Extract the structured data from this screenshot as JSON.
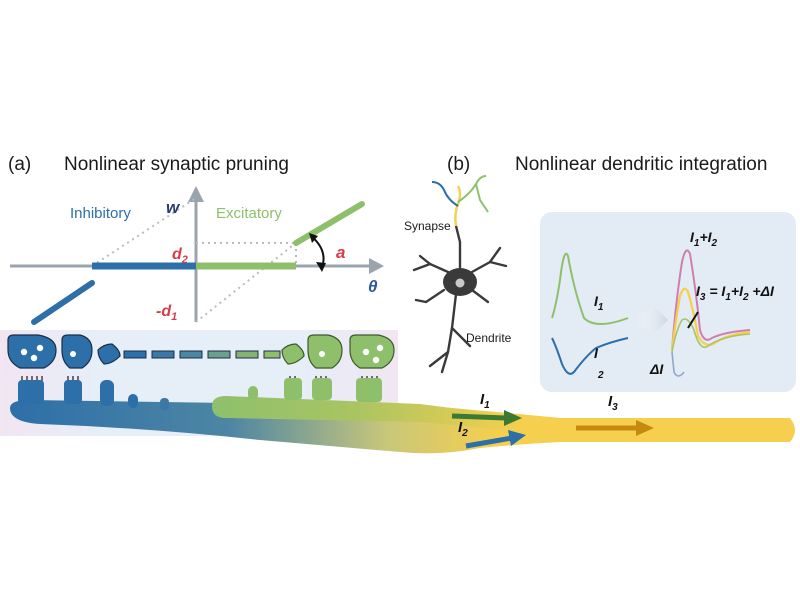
{
  "panel_a": {
    "letter": "(a)",
    "title": "Nonlinear synaptic pruning",
    "axis_w": "w",
    "axis_theta": "θ",
    "inhibitory_label": "Inhibitory",
    "excitatory_label": "Excitatory",
    "d2_base": "d",
    "d2_sub": "2",
    "d1_base": "-d",
    "d1_sub": "1",
    "a_label": "a",
    "current1_base": "I",
    "current1_sub": "1",
    "current2_base": "I",
    "current2_sub": "2",
    "current3_base": "I",
    "current3_sub": "3"
  },
  "panel_b": {
    "letter": "(b)",
    "title": "Nonlinear dendritic integration",
    "synapse_label": "Synapse",
    "dendrite_label": "Dendrite",
    "i1_base": "I",
    "i1_sub": "1",
    "i2_base": "I",
    "i2_sub": "2",
    "sum_i1": "I",
    "sum_i1_sub": "1",
    "sum_plus": "+",
    "sum_i2": "I",
    "sum_i2_sub": "2",
    "eq_i3": "I",
    "eq_i3_sub": "3",
    "eq_mid": " = ",
    "eq_i1": "I",
    "eq_i1_sub": "1",
    "eq_plus": "+",
    "eq_i2": "I",
    "eq_i2_sub": "2",
    "eq_tail": " +ΔI",
    "delta_label": "ΔI"
  },
  "colors": {
    "inhibitory": "#2d6fa8",
    "excitatory": "#8ec06c",
    "red_label": "#d63c4a",
    "axis": "#9aa4ae",
    "dendrite_yellow": "#f5cf4d",
    "panel_bg": "#e3ebf5"
  }
}
